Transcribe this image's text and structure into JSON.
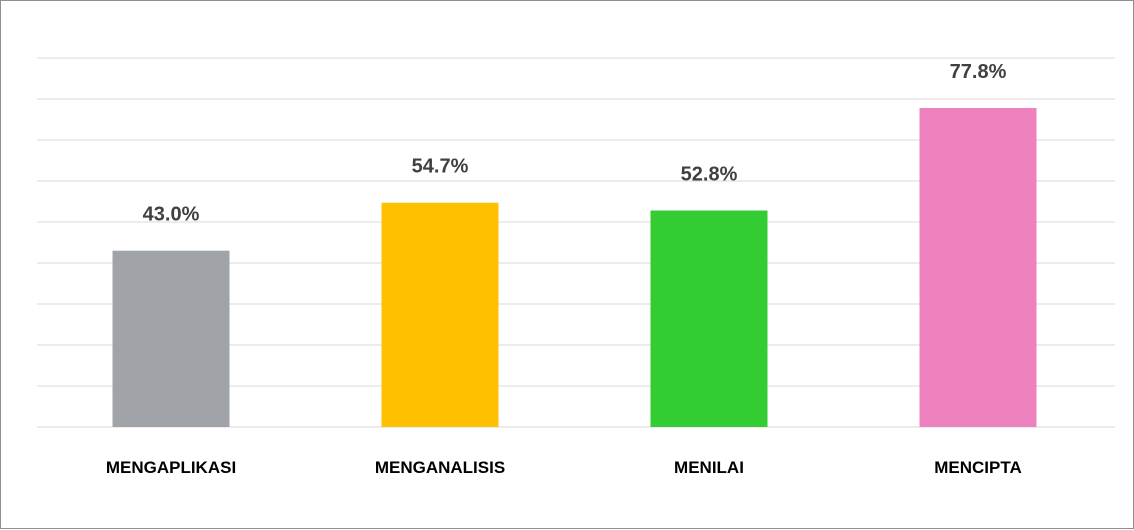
{
  "chart_data": {
    "type": "bar",
    "categories": [
      "MENGAPLIKASI",
      "MENGANALISIS",
      "MENILAI",
      "MENCIPTA"
    ],
    "values": [
      43.0,
      54.7,
      52.8,
      77.8
    ],
    "value_labels": [
      "43.0%",
      "54.7%",
      "52.8%",
      "77.8%"
    ],
    "colors": [
      "#a0a3a8",
      "#ffc000",
      "#33cc33",
      "#ee82be"
    ],
    "ylim": [
      0,
      90
    ],
    "grid": true,
    "legend": "none",
    "title": "",
    "xlabel": "",
    "ylabel": ""
  }
}
